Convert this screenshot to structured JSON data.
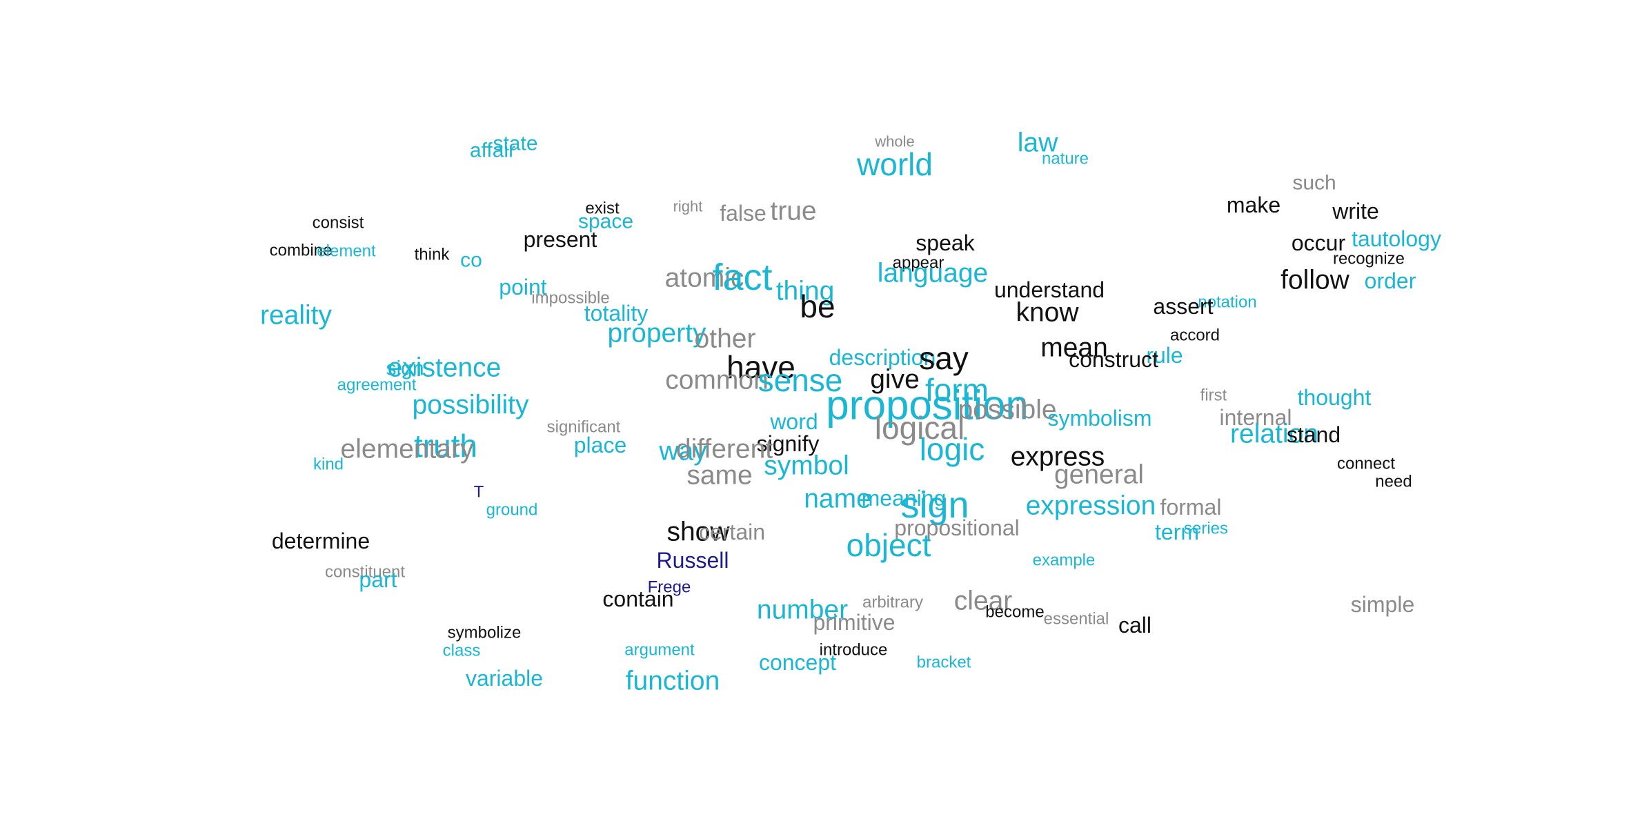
{
  "colors": {
    "teal": "#1ab7d4",
    "black": "#111111",
    "gray": "#8a8a8a",
    "navy": "#1c1c8c"
  },
  "words": [
    {
      "text": "state",
      "color": "teal"
    },
    {
      "text": "affair",
      "color": "teal"
    },
    {
      "text": "whole",
      "color": "gray"
    },
    {
      "text": "law",
      "color": "teal"
    },
    {
      "text": "nature",
      "color": "teal"
    },
    {
      "text": "world",
      "color": "teal"
    },
    {
      "text": "such",
      "color": "gray"
    },
    {
      "text": "make",
      "color": "black"
    },
    {
      "text": "write",
      "color": "black"
    },
    {
      "text": "exist",
      "color": "black"
    },
    {
      "text": "right",
      "color": "gray"
    },
    {
      "text": "false",
      "color": "gray"
    },
    {
      "text": "true",
      "color": "gray"
    },
    {
      "text": "consist",
      "color": "black"
    },
    {
      "text": "space",
      "color": "teal"
    },
    {
      "text": "present",
      "color": "black"
    },
    {
      "text": "speak",
      "color": "black"
    },
    {
      "text": "occur",
      "color": "black"
    },
    {
      "text": "tautology",
      "color": "teal"
    },
    {
      "text": "combine",
      "color": "black"
    },
    {
      "text": "element",
      "color": "teal"
    },
    {
      "text": "think",
      "color": "black"
    },
    {
      "text": "co",
      "color": "teal"
    },
    {
      "text": "appear",
      "color": "black"
    },
    {
      "text": "recognize",
      "color": "black"
    },
    {
      "text": "language",
      "color": "teal"
    },
    {
      "text": "atomic",
      "color": "gray"
    },
    {
      "text": "fact",
      "color": "teal"
    },
    {
      "text": "follow",
      "color": "black"
    },
    {
      "text": "order",
      "color": "teal"
    },
    {
      "text": "point",
      "color": "teal"
    },
    {
      "text": "thing",
      "color": "teal"
    },
    {
      "text": "understand",
      "color": "black"
    },
    {
      "text": "impossible",
      "color": "gray"
    },
    {
      "text": "be",
      "color": "black"
    },
    {
      "text": "notation",
      "color": "teal"
    },
    {
      "text": "assert",
      "color": "black"
    },
    {
      "text": "reality",
      "color": "teal"
    },
    {
      "text": "totality",
      "color": "teal"
    },
    {
      "text": "know",
      "color": "black"
    },
    {
      "text": "property",
      "color": "teal"
    },
    {
      "text": "accord",
      "color": "black"
    },
    {
      "text": "other",
      "color": "gray"
    },
    {
      "text": "mean",
      "color": "black"
    },
    {
      "text": "description",
      "color": "teal"
    },
    {
      "text": "rule",
      "color": "teal"
    },
    {
      "text": "construct",
      "color": "black"
    },
    {
      "text": "say",
      "color": "black"
    },
    {
      "text": "existence",
      "color": "teal"
    },
    {
      "text": "sign",
      "color": "teal"
    },
    {
      "text": "have",
      "color": "black"
    },
    {
      "text": "common",
      "color": "gray"
    },
    {
      "text": "sense",
      "color": "teal"
    },
    {
      "text": "give",
      "color": "black"
    },
    {
      "text": "form",
      "color": "teal"
    },
    {
      "text": "agreement",
      "color": "teal"
    },
    {
      "text": "first",
      "color": "gray"
    },
    {
      "text": "thought",
      "color": "teal"
    },
    {
      "text": "proposition",
      "color": "teal"
    },
    {
      "text": "possibility",
      "color": "teal"
    },
    {
      "text": "possible",
      "color": "gray"
    },
    {
      "text": "internal",
      "color": "gray"
    },
    {
      "text": "symbolism",
      "color": "teal"
    },
    {
      "text": "word",
      "color": "teal"
    },
    {
      "text": "significant",
      "color": "gray"
    },
    {
      "text": "logical",
      "color": "gray"
    },
    {
      "text": "relation",
      "color": "teal"
    },
    {
      "text": "stand",
      "color": "black"
    },
    {
      "text": "signify",
      "color": "black"
    },
    {
      "text": "truth",
      "color": "teal"
    },
    {
      "text": "elementary",
      "color": "gray"
    },
    {
      "text": "place",
      "color": "teal"
    },
    {
      "text": "logic",
      "color": "teal"
    },
    {
      "text": "way",
      "color": "teal"
    },
    {
      "text": "different",
      "color": "gray"
    },
    {
      "text": "express",
      "color": "black"
    },
    {
      "text": "connect",
      "color": "black"
    },
    {
      "text": "kind",
      "color": "teal"
    },
    {
      "text": "symbol",
      "color": "teal"
    },
    {
      "text": "need",
      "color": "black"
    },
    {
      "text": "general",
      "color": "gray"
    },
    {
      "text": "same",
      "color": "gray"
    },
    {
      "text": "T",
      "color": "navy"
    },
    {
      "text": "name",
      "color": "teal"
    },
    {
      "text": "meaning",
      "color": "teal"
    },
    {
      "text": "ground",
      "color": "teal"
    },
    {
      "text": "sign",
      "color": "teal"
    },
    {
      "text": "expression",
      "color": "teal"
    },
    {
      "text": "formal",
      "color": "gray"
    },
    {
      "text": "propositional",
      "color": "gray"
    },
    {
      "text": "show",
      "color": "black"
    },
    {
      "text": "certain",
      "color": "gray"
    },
    {
      "text": "term",
      "color": "teal"
    },
    {
      "text": "series",
      "color": "teal"
    },
    {
      "text": "determine",
      "color": "black"
    },
    {
      "text": "object",
      "color": "teal"
    },
    {
      "text": "example",
      "color": "teal"
    },
    {
      "text": "Russell",
      "color": "navy"
    },
    {
      "text": "constituent",
      "color": "gray"
    },
    {
      "text": "part",
      "color": "teal"
    },
    {
      "text": "Frege",
      "color": "navy"
    },
    {
      "text": "contain",
      "color": "black"
    },
    {
      "text": "arbitrary",
      "color": "gray"
    },
    {
      "text": "clear",
      "color": "gray"
    },
    {
      "text": "simple",
      "color": "gray"
    },
    {
      "text": "number",
      "color": "teal"
    },
    {
      "text": "become",
      "color": "black"
    },
    {
      "text": "essential",
      "color": "gray"
    },
    {
      "text": "primitive",
      "color": "gray"
    },
    {
      "text": "call",
      "color": "black"
    },
    {
      "text": "symbolize",
      "color": "black"
    },
    {
      "text": "class",
      "color": "teal"
    },
    {
      "text": "argument",
      "color": "teal"
    },
    {
      "text": "introduce",
      "color": "black"
    },
    {
      "text": "concept",
      "color": "teal"
    },
    {
      "text": "bracket",
      "color": "teal"
    },
    {
      "text": "variable",
      "color": "teal"
    },
    {
      "text": "function",
      "color": "teal"
    }
  ]
}
